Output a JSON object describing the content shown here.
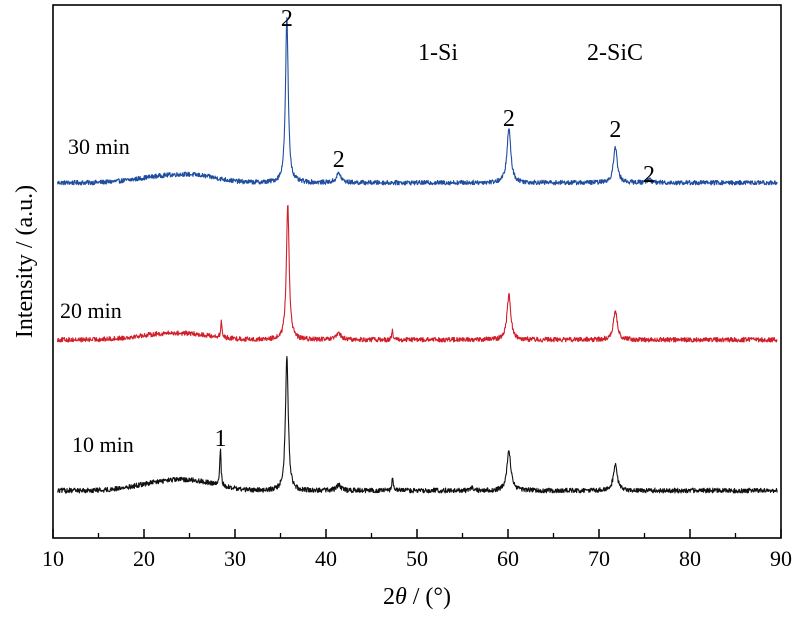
{
  "chart_data": {
    "type": "line",
    "title": "",
    "xlabel": "2θ / (°)",
    "ylabel": "Intensity / (a.u.)",
    "xlim": [
      10,
      90
    ],
    "x_ticks": [
      10,
      20,
      30,
      40,
      50,
      60,
      70,
      80,
      90
    ],
    "x_minor_step": 5,
    "y_ticks_shown": false,
    "grid": false,
    "legend_entries": [
      "1-Si",
      "2-SiC"
    ],
    "series": [
      {
        "name": "30 min",
        "color": "#1f4e9e",
        "baseline": 0.7,
        "noise": 0.22,
        "broad_humps": [
          {
            "center": 22,
            "height": 0.55,
            "width": 3.0
          },
          {
            "center": 26,
            "height": 0.5,
            "width": 2.5
          }
        ],
        "peaks": [
          {
            "position": 35.7,
            "height": 15.8,
            "width": 0.18
          },
          {
            "position": 41.4,
            "height": 0.9,
            "width": 0.3
          },
          {
            "position": 60.1,
            "height": 5.2,
            "width": 0.25
          },
          {
            "position": 71.8,
            "height": 3.4,
            "width": 0.25
          },
          {
            "position": 75.5,
            "height": 0.3,
            "width": 0.3
          }
        ]
      },
      {
        "name": "20 min",
        "color": "#d11f2a",
        "baseline": 0.4,
        "noise": 0.22,
        "broad_humps": [
          {
            "center": 22,
            "height": 0.5,
            "width": 3.0
          },
          {
            "center": 26,
            "height": 0.3,
            "width": 2.5
          }
        ],
        "peaks": [
          {
            "position": 28.5,
            "height": 1.5,
            "width": 0.08
          },
          {
            "position": 35.8,
            "height": 12.9,
            "width": 0.18
          },
          {
            "position": 41.4,
            "height": 0.6,
            "width": 0.3
          },
          {
            "position": 47.3,
            "height": 0.8,
            "width": 0.08
          },
          {
            "position": 60.1,
            "height": 4.2,
            "width": 0.25
          },
          {
            "position": 71.8,
            "height": 2.8,
            "width": 0.25
          }
        ]
      },
      {
        "name": "10 min",
        "color": "#111111",
        "baseline": 0.4,
        "noise": 0.22,
        "broad_humps": [
          {
            "center": 22,
            "height": 0.7,
            "width": 3.0
          },
          {
            "center": 26,
            "height": 0.6,
            "width": 2.5
          }
        ],
        "peaks": [
          {
            "position": 28.4,
            "height": 3.5,
            "width": 0.08
          },
          {
            "position": 35.7,
            "height": 12.4,
            "width": 0.18
          },
          {
            "position": 41.4,
            "height": 0.5,
            "width": 0.3
          },
          {
            "position": 47.3,
            "height": 1.2,
            "width": 0.08
          },
          {
            "position": 56.1,
            "height": 0.4,
            "width": 0.1
          },
          {
            "position": 60.1,
            "height": 3.7,
            "width": 0.25
          },
          {
            "position": 71.8,
            "height": 2.4,
            "width": 0.25
          }
        ]
      }
    ],
    "annotations": [
      {
        "text": "2",
        "x": 35.7,
        "series": "30 min",
        "role": "peak-label"
      },
      {
        "text": "2",
        "x": 41.4,
        "series": "30 min",
        "role": "peak-label"
      },
      {
        "text": "2",
        "x": 60.1,
        "series": "30 min",
        "role": "peak-label"
      },
      {
        "text": "2",
        "x": 71.8,
        "series": "30 min",
        "role": "peak-label"
      },
      {
        "text": "2",
        "x": 75.5,
        "series": "30 min",
        "role": "peak-label"
      },
      {
        "text": "1",
        "x": 28.4,
        "series": "10 min",
        "role": "peak-label"
      }
    ]
  }
}
